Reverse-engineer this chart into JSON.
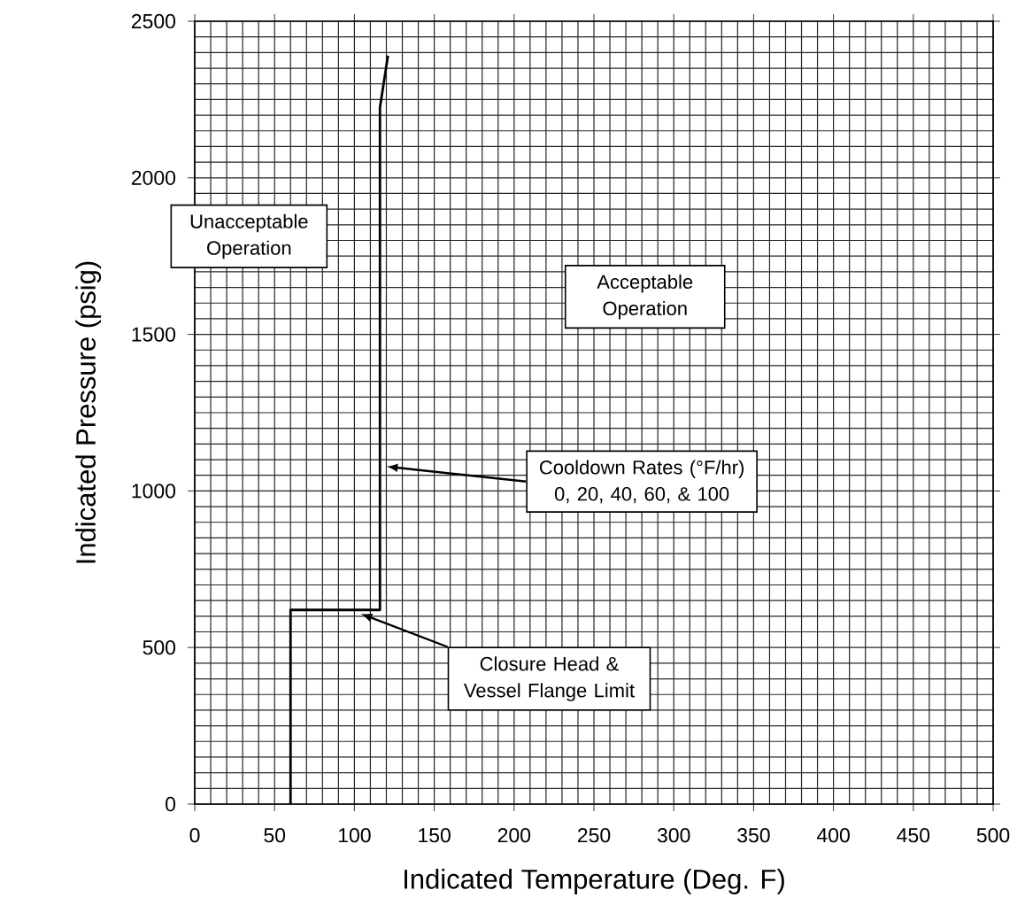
{
  "chart_data": {
    "type": "line",
    "xlabel": "Indicated Temperature (Deg. F)",
    "ylabel": "Indicated Pressure (psig)",
    "series": [
      {
        "color": "#000000",
        "x": [
          60,
          60,
          116,
          116,
          121
        ],
        "values": [
          0,
          620,
          620,
          2225,
          2390
        ]
      }
    ],
    "xlim": [
      0,
      500
    ],
    "ylim": [
      0,
      2500
    ],
    "xticks": [
      0,
      50,
      100,
      150,
      200,
      250,
      300,
      350,
      400,
      450,
      500
    ],
    "yticks": [
      0,
      500,
      1000,
      1500,
      2000,
      2500
    ],
    "grid": true,
    "marker": "none",
    "line_style": "solid",
    "annotations": [
      "Unacceptable Operation",
      "Acceptable Operation",
      "Cooldown Rates (°F/hr) 0, 20, 40, 60, & 100",
      "Closure Head & Vessel Flange Limit"
    ]
  }
}
